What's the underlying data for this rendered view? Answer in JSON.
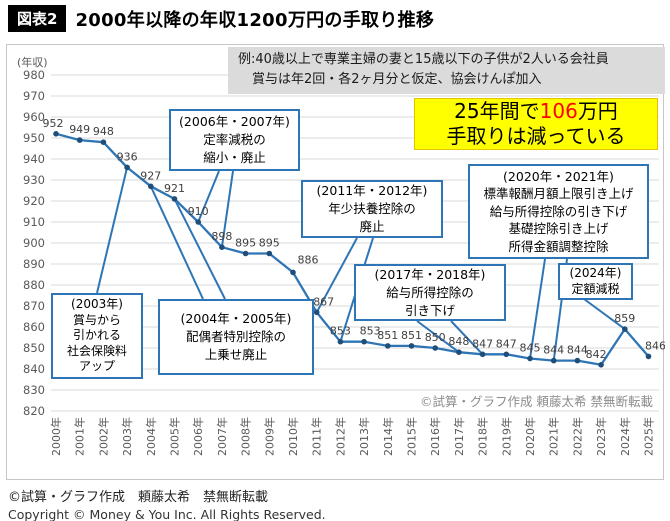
{
  "header": {
    "badge": "図表2",
    "title": "2000年以降の年収1200万円の手取り推移"
  },
  "note_box": {
    "line1": "例:40歳以上で専業主婦の妻と15歳以下の子供が2人いる会社員",
    "line2": "賞与は年2回・各2ヶ月分と仮定、協会けんぽ加入"
  },
  "highlight": {
    "line1_pre": "25年間で",
    "line1_value": "106",
    "line1_post": "万円",
    "line2": "手取りは減っている",
    "bg_color": "#FFFF00",
    "value_color": "#FF0000"
  },
  "chart_data": {
    "type": "line",
    "title": "2000年以降の年収1200万円の手取り推移",
    "unit_label": "(年収)",
    "x": [
      "2000年",
      "2001年",
      "2002年",
      "2003年",
      "2004年",
      "2005年",
      "2006年",
      "2007年",
      "2008年",
      "2009年",
      "2010年",
      "2011年",
      "2012年",
      "2013年",
      "2014年",
      "2015年",
      "2016年",
      "2017年",
      "2018年",
      "2019年",
      "2020年",
      "2021年",
      "2022年",
      "2023年",
      "2024年",
      "2025年"
    ],
    "values": [
      952,
      949,
      948,
      936,
      927,
      921,
      910,
      898,
      895,
      895,
      886,
      867,
      853,
      853,
      851,
      851,
      850,
      848,
      847,
      847,
      845,
      844,
      844,
      842,
      859,
      846
    ],
    "xlabel": "",
    "ylabel": "",
    "ylim": [
      820,
      980
    ],
    "ytick_step": 10,
    "grid": true,
    "legend": "none",
    "line_color": "#2E75B6",
    "point_color": "#1F4E79",
    "watermark": "©試算・グラフ作成 頼藤太希 禁無断転載"
  },
  "annotations": [
    {
      "lines": [
        "(2003年)",
        "賞与から",
        "引かれる",
        "社会保険料",
        "アップ"
      ],
      "targets": [
        2003
      ]
    },
    {
      "lines": [
        "(2004年・2005年)",
        "配偶者特別控除の",
        "上乗せ廃止"
      ],
      "targets": [
        2004,
        2005
      ]
    },
    {
      "lines": [
        "(2006年・2007年)",
        "定率減税の",
        "縮小・廃止"
      ],
      "targets": [
        2006,
        2007
      ]
    },
    {
      "lines": [
        "(2011年・2012年)",
        "年少扶養控除の",
        "廃止"
      ],
      "targets": [
        2011,
        2012
      ]
    },
    {
      "lines": [
        "(2017年・2018年)",
        "給与所得控除の",
        "引き下げ"
      ],
      "targets": [
        2017,
        2018
      ]
    },
    {
      "lines": [
        "(2020年・2021年)",
        "標準報酬月額上限引き上げ",
        "給与所得控除の引き下げ",
        "基礎控除引き上げ",
        "所得金額調整控除"
      ],
      "targets": [
        2020,
        2021
      ]
    },
    {
      "lines": [
        "(2024年)",
        "定額減税"
      ],
      "targets": [
        2024
      ]
    }
  ],
  "footer": {
    "line1": "©試算・グラフ作成　頼藤太希　禁無断転載",
    "line2": "Copyright © Money & You Inc. All Rights Reserved."
  }
}
